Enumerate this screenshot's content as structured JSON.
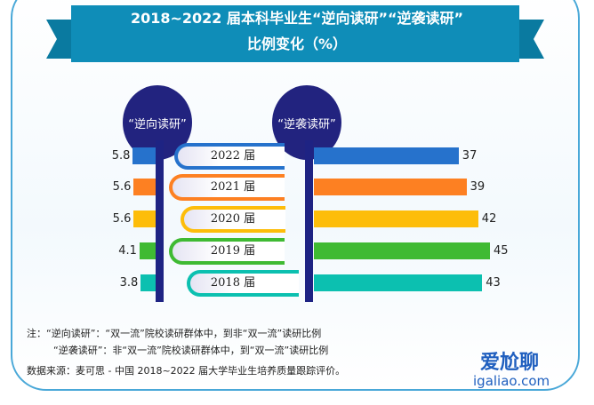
{
  "title_line1": "2018~2022 届本科毕业生“逆向读研”“逆袭读研”",
  "title_line2": "比例变化（%）",
  "colors": {
    "banner": "#0f8db8",
    "pillar": "#1e2383",
    "rows": [
      "#2672cc",
      "#fd8022",
      "#fdbd0a",
      "#3fba33",
      "#0cc0b0"
    ]
  },
  "chart_data": {
    "type": "bar",
    "title": "2018~2022 届本科毕业生“逆向读研”“逆袭读研”比例变化（%）",
    "categories": [
      "2022 届",
      "2021 届",
      "2020 届",
      "2019 届",
      "2018 届"
    ],
    "series": [
      {
        "name": "“逆向读研”",
        "values": [
          5.8,
          5.6,
          5.6,
          4.1,
          3.8
        ]
      },
      {
        "name": "“逆袭读研”",
        "values": [
          37,
          39,
          42,
          45,
          43
        ]
      }
    ]
  },
  "notes": {
    "line1": "注：“逆向读研”：“双一流”院校读研群体中，到非“双一流”读研比例",
    "line2": "“逆袭读研”：非“双一流”院校读研群体中，到“双一流”读研比例",
    "source": "数据来源：麦可思 - 中国 2018~2022 届大学毕业生培养质量跟踪评价。"
  },
  "watermark": {
    "line1": "爱尬聊",
    "line2": "igaliao.com"
  }
}
